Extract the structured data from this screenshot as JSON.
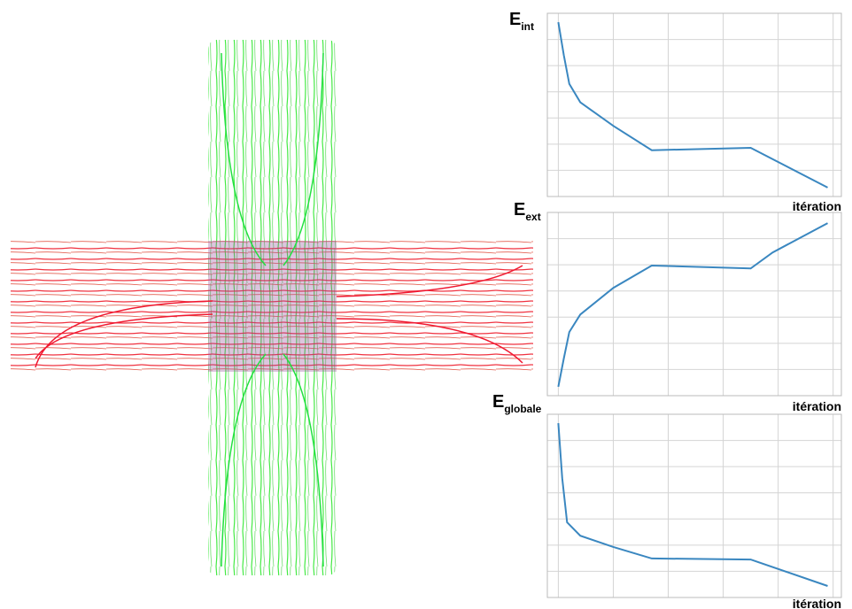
{
  "chart_data": [
    {
      "type": "line",
      "title": "E",
      "title_sub": "int",
      "xlabel": "itération",
      "color": "#3a87c0",
      "x": [
        0,
        1,
        2,
        4,
        6,
        10,
        17,
        35,
        49
      ],
      "values": [
        6.66,
        5.4,
        4.3,
        3.6,
        3.3,
        2.7,
        1.77,
        1.86,
        0.34
      ],
      "xlim": [
        -2,
        51.5
      ],
      "ylim": [
        0,
        7
      ],
      "xticks": [
        0,
        10,
        20,
        30,
        40,
        50
      ],
      "yticks": [
        0,
        1,
        2,
        3,
        4,
        5,
        6,
        7
      ],
      "grid": true
    },
    {
      "type": "line",
      "title": "E",
      "title_sub": "ext",
      "xlabel": "itération",
      "color": "#3a87c0",
      "x": [
        0,
        1,
        2,
        4,
        10,
        17,
        35,
        39,
        49
      ],
      "values": [
        0.34,
        1.42,
        2.43,
        3.1,
        4.12,
        4.97,
        4.86,
        5.47,
        6.59
      ],
      "xlim": [
        -2,
        51.5
      ],
      "ylim": [
        0,
        7
      ],
      "xticks": [
        0,
        10,
        20,
        30,
        40,
        50
      ],
      "yticks": [
        0,
        1,
        2,
        3,
        4,
        5,
        6,
        7
      ],
      "grid": true
    },
    {
      "type": "line",
      "title": "E",
      "title_sub": "globale",
      "xlabel": "itération",
      "color": "#3a87c0",
      "x": [
        0,
        0.7,
        1.6,
        4,
        10,
        17,
        35,
        49
      ],
      "values": [
        6.66,
        4.56,
        2.87,
        2.36,
        1.93,
        1.49,
        1.45,
        0.44
      ],
      "xlim": [
        -2,
        51.5
      ],
      "ylim": [
        0,
        7
      ],
      "xticks": [
        0,
        10,
        20,
        30,
        40,
        50
      ],
      "yticks": [
        0,
        1,
        2,
        3,
        4,
        5,
        6,
        7
      ],
      "grid": true
    }
  ]
}
